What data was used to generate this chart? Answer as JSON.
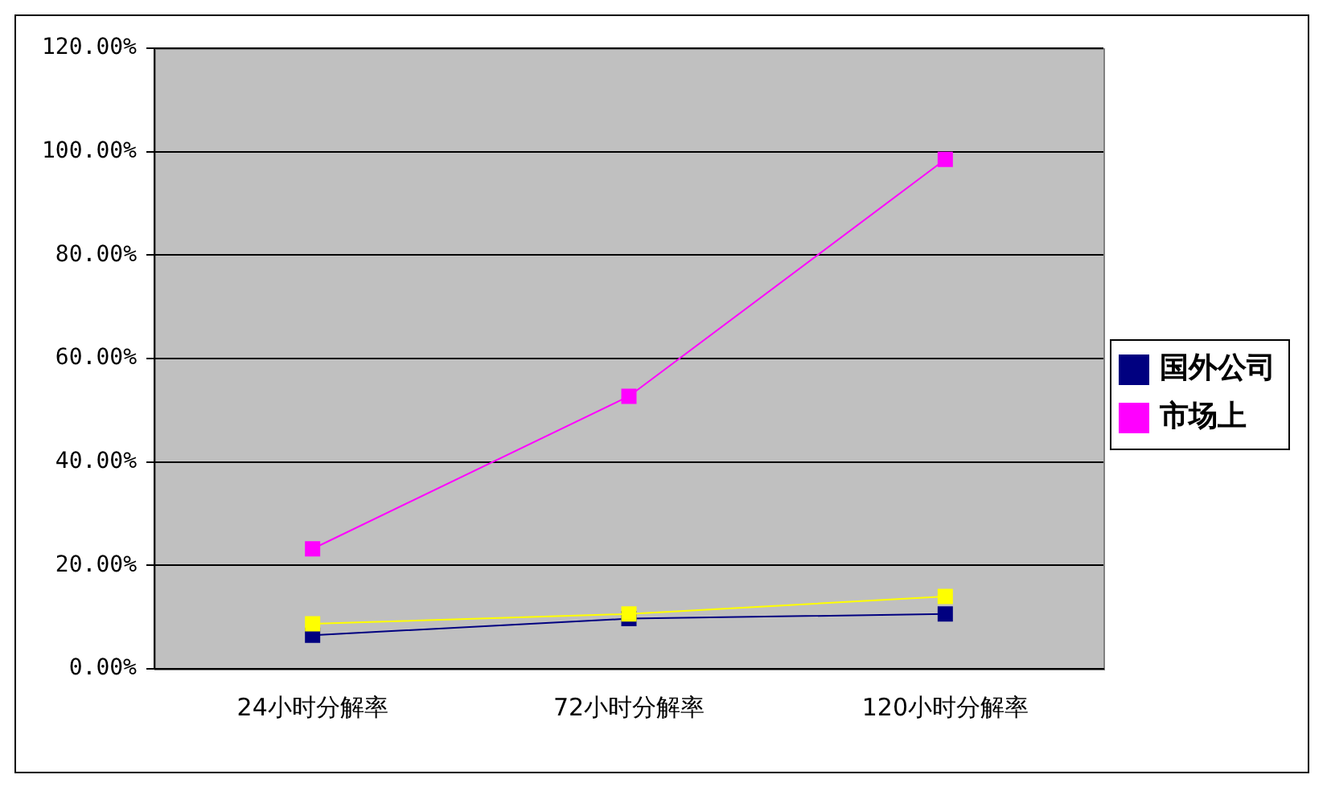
{
  "chart_data": {
    "type": "line",
    "categories": [
      "24小时分解率",
      "72小时分解率",
      "120小时分解率"
    ],
    "series": [
      {
        "name": "国外公司",
        "color": "#000080",
        "values": [
          6.5,
          9.7,
          10.6
        ]
      },
      {
        "name": "市场上",
        "color": "#ff00ff",
        "values": [
          23.2,
          52.7,
          98.5
        ]
      },
      {
        "color": "#ffff00",
        "values": [
          8.7,
          10.6,
          14
        ]
      }
    ],
    "ylim": [
      0,
      120
    ],
    "yticks": [
      {
        "value": 0,
        "label": "0.00%"
      },
      {
        "value": 20,
        "label": "20.00%"
      },
      {
        "value": 40,
        "label": "40.00%"
      },
      {
        "value": 60,
        "label": "60.00%"
      },
      {
        "value": 80,
        "label": "80.00%"
      },
      {
        "value": 100,
        "label": "100.00%"
      },
      {
        "value": 120,
        "label": "120.00%"
      }
    ],
    "grid": "y",
    "legend": "right",
    "marker": "square",
    "line_style": "solid"
  }
}
